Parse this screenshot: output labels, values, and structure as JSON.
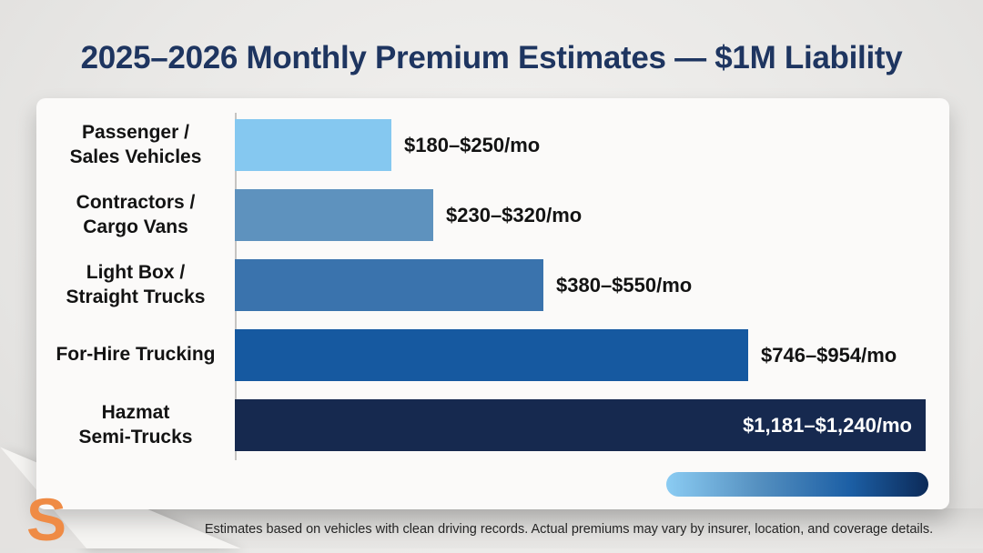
{
  "title": "2025–2026 Monthly Premium Estimates — $1M Liability",
  "chart_data": {
    "type": "bar",
    "orientation": "horizontal",
    "title": "2025–2026 Monthly Premium Estimates — $1M Liability",
    "unit": "USD per month",
    "xlabel": "",
    "ylabel": "",
    "x_range": [
      0,
      1240
    ],
    "grid": false,
    "rows": [
      {
        "category_lines": [
          "Passenger /",
          "Sales Vehicles"
        ],
        "low": 180,
        "high": 250,
        "value_label": "$180–$250/mo",
        "color": "#85c8f0",
        "bar_fraction": 0.227,
        "label_inside": false
      },
      {
        "category_lines": [
          "Contractors /",
          "Cargo Vans"
        ],
        "low": 230,
        "high": 320,
        "value_label": "$230–$320/mo",
        "color": "#5e92be",
        "bar_fraction": 0.287,
        "label_inside": false
      },
      {
        "category_lines": [
          "Light Box /",
          "Straight Trucks"
        ],
        "low": 380,
        "high": 550,
        "value_label": "$380–$550/mo",
        "color": "#3a73ad",
        "bar_fraction": 0.447,
        "label_inside": false
      },
      {
        "category_lines": [
          "For-Hire Trucking"
        ],
        "low": 746,
        "high": 954,
        "value_label": "$746–$954/mo",
        "color": "#1659a0",
        "bar_fraction": 0.743,
        "label_inside": false
      },
      {
        "category_lines": [
          "Hazmat",
          "Semi-Trucks"
        ],
        "low": 1181,
        "high": 1240,
        "value_label": "$1,181–$1,240/mo",
        "color": "#16294f",
        "bar_fraction": 1.0,
        "label_inside": true
      }
    ],
    "legend": {
      "type": "gradient-scale",
      "position": "bottom-right",
      "colors": [
        "#8bccf3",
        "#1c5fa5",
        "#0c2a58"
      ]
    }
  },
  "colors": {
    "title_navy": "#1e3560",
    "logo_orange": "#ef8b45",
    "card_background": "#fbfaf9",
    "page_background": "#e9e8e6"
  },
  "footer": {
    "note": "Estimates based on vehicles with clean driving records. Actual premiums may vary by insurer, location, and coverage details."
  },
  "logo": {
    "letter": "S"
  }
}
